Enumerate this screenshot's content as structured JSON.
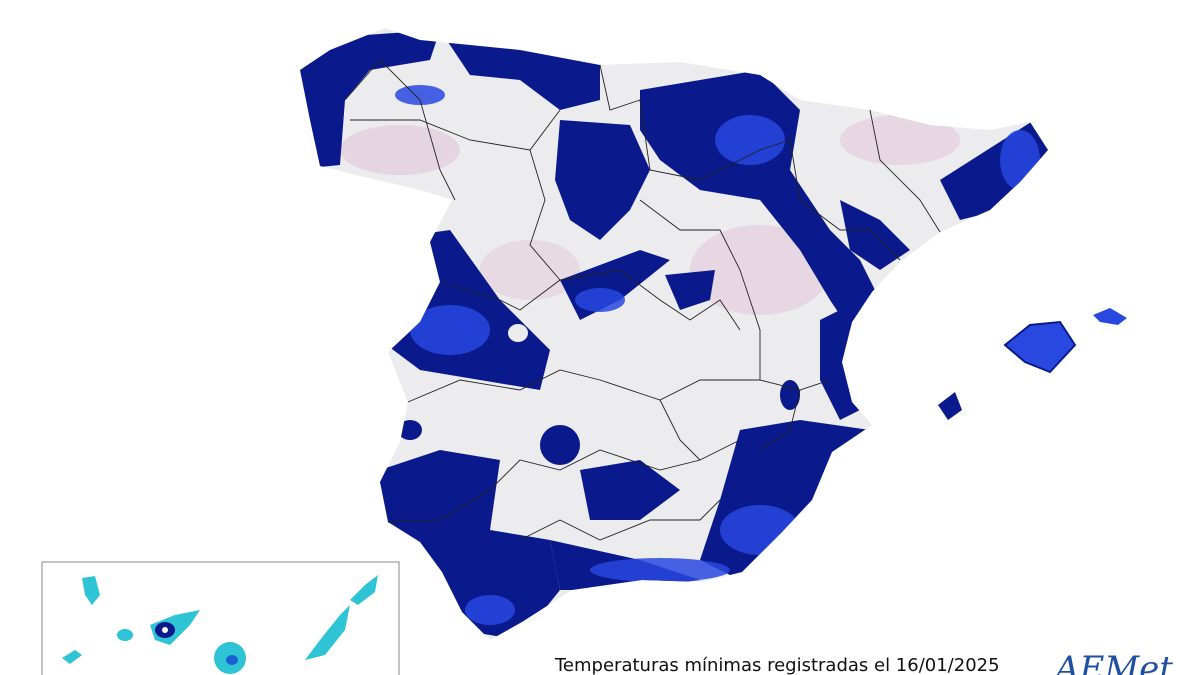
{
  "caption": "Temperaturas mínimas registradas el 16/01/2025",
  "logo": "AEMet"
}
